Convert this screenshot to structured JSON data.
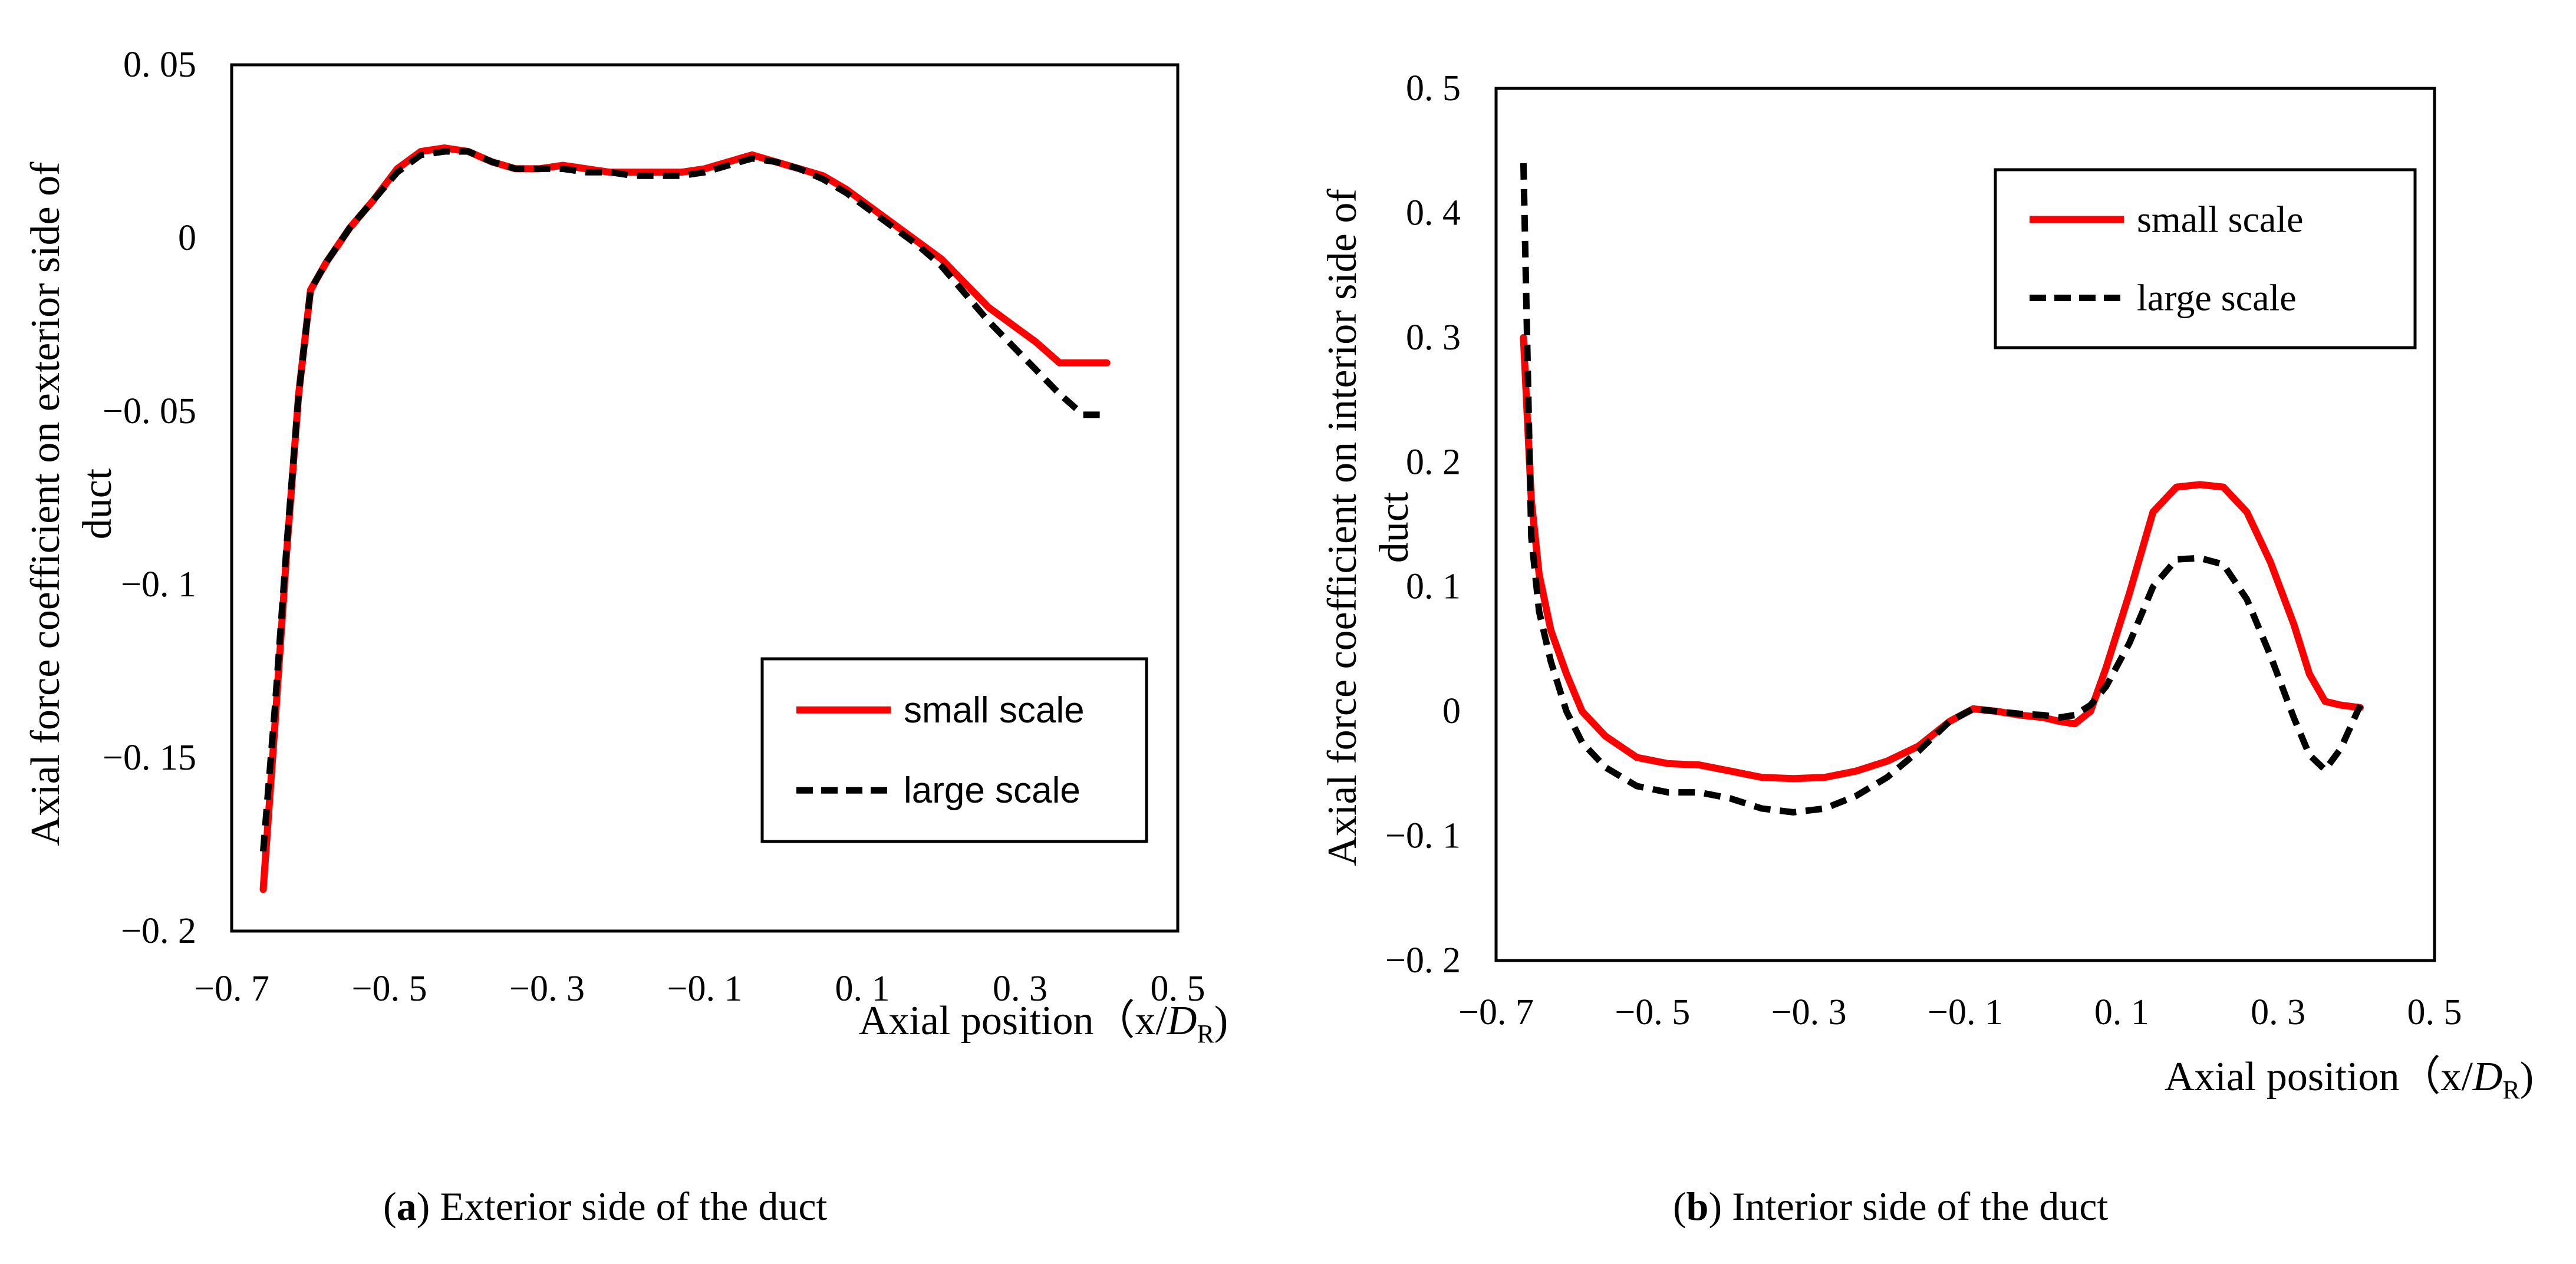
{
  "chart_data": [
    {
      "type": "line",
      "caption_letter": "a",
      "caption_text": "Exterior side of the duct",
      "xlabel": "Axial position（x/",
      "xlabel_var": "D",
      "xlabel_sub": "R",
      "xlabel_close": ")",
      "ylabel_line1": "Axial force coefficient on exterior side of",
      "ylabel_line2": "duct",
      "xlim": [
        -0.7,
        0.5
      ],
      "ylim": [
        -0.2,
        0.05
      ],
      "xticks": [
        -0.7,
        -0.5,
        -0.3,
        -0.1,
        0.1,
        0.3,
        0.5
      ],
      "yticks": [
        -0.2,
        -0.15,
        -0.1,
        -0.05,
        0,
        0.05
      ],
      "xtick_labels": [
        "−0. 7",
        "−0. 5",
        "−0. 3",
        "−0. 1",
        "0. 1",
        "0. 3",
        "0. 5"
      ],
      "ytick_labels": [
        "−0. 2",
        "−0. 15",
        "−0. 1",
        "−0. 05",
        "0",
        "0. 05"
      ],
      "legend_position": "lower-right",
      "series": [
        {
          "name": "small scale",
          "color": "#ff0000",
          "style": "solid",
          "x": [
            -0.66,
            -0.645,
            -0.63,
            -0.615,
            -0.6,
            -0.58,
            -0.55,
            -0.52,
            -0.49,
            -0.46,
            -0.43,
            -0.4,
            -0.37,
            -0.34,
            -0.31,
            -0.28,
            -0.25,
            -0.22,
            -0.19,
            -0.16,
            -0.13,
            -0.1,
            -0.07,
            -0.04,
            -0.01,
            0.02,
            0.05,
            0.08,
            0.11,
            0.14,
            0.17,
            0.2,
            0.23,
            0.26,
            0.29,
            0.32,
            0.35,
            0.38,
            0.41
          ],
          "y": [
            -0.188,
            -0.14,
            -0.09,
            -0.045,
            -0.015,
            -0.007,
            0.003,
            0.011,
            0.02,
            0.025,
            0.026,
            0.025,
            0.022,
            0.02,
            0.02,
            0.021,
            0.02,
            0.019,
            0.019,
            0.019,
            0.019,
            0.02,
            0.022,
            0.024,
            0.022,
            0.02,
            0.018,
            0.014,
            0.009,
            0.004,
            -0.001,
            -0.006,
            -0.013,
            -0.02,
            -0.025,
            -0.03,
            -0.036,
            -0.036,
            -0.036
          ]
        },
        {
          "name": "large scale",
          "color": "#000000",
          "style": "dashed",
          "x": [
            -0.66,
            -0.645,
            -0.63,
            -0.615,
            -0.6,
            -0.58,
            -0.55,
            -0.52,
            -0.49,
            -0.46,
            -0.43,
            -0.4,
            -0.37,
            -0.34,
            -0.31,
            -0.28,
            -0.25,
            -0.22,
            -0.19,
            -0.16,
            -0.13,
            -0.1,
            -0.07,
            -0.04,
            -0.01,
            0.02,
            0.05,
            0.08,
            0.11,
            0.14,
            0.17,
            0.2,
            0.23,
            0.26,
            0.29,
            0.32,
            0.35,
            0.38,
            0.41
          ],
          "y": [
            -0.177,
            -0.135,
            -0.088,
            -0.045,
            -0.015,
            -0.007,
            0.003,
            0.011,
            0.019,
            0.024,
            0.025,
            0.025,
            0.022,
            0.02,
            0.02,
            0.02,
            0.019,
            0.019,
            0.018,
            0.018,
            0.018,
            0.019,
            0.021,
            0.023,
            0.022,
            0.02,
            0.017,
            0.013,
            0.008,
            0.003,
            -0.002,
            -0.008,
            -0.016,
            -0.024,
            -0.031,
            -0.038,
            -0.045,
            -0.051,
            -0.051
          ]
        }
      ]
    },
    {
      "type": "line",
      "caption_letter": "b",
      "caption_text": "Interior side of the duct",
      "xlabel": "Axial position（x/",
      "xlabel_var": "D",
      "xlabel_sub": "R",
      "xlabel_close": ")",
      "ylabel_line1": "Axial force coefficient on interior side of",
      "ylabel_line2": "duct",
      "xlim": [
        -0.7,
        0.5
      ],
      "ylim": [
        -0.2,
        0.5
      ],
      "xticks": [
        -0.7,
        -0.5,
        -0.3,
        -0.1,
        0.1,
        0.3,
        0.5
      ],
      "yticks": [
        -0.2,
        -0.1,
        0,
        0.1,
        0.2,
        0.3,
        0.4,
        0.5
      ],
      "xtick_labels": [
        "−0. 7",
        "−0. 5",
        "−0. 3",
        "−0. 1",
        "0. 1",
        "0. 3",
        "0. 5"
      ],
      "ytick_labels": [
        "−0. 2",
        "−0. 1",
        "0",
        "0. 1",
        "0. 2",
        "0. 3",
        "0. 4",
        "0. 5"
      ],
      "legend_position": "top-right",
      "series": [
        {
          "name": "small scale",
          "color": "#ff0000",
          "style": "solid",
          "x": [
            -0.665,
            -0.655,
            -0.645,
            -0.63,
            -0.61,
            -0.59,
            -0.56,
            -0.52,
            -0.48,
            -0.44,
            -0.4,
            -0.36,
            -0.32,
            -0.28,
            -0.24,
            -0.2,
            -0.16,
            -0.12,
            -0.09,
            -0.06,
            -0.03,
            0.0,
            0.02,
            0.04,
            0.06,
            0.08,
            0.11,
            0.14,
            0.17,
            0.2,
            0.23,
            0.26,
            0.29,
            0.32,
            0.34,
            0.36,
            0.38,
            0.405
          ],
          "y": [
            0.3,
            0.17,
            0.11,
            0.065,
            0.03,
            0.0,
            -0.02,
            -0.037,
            -0.042,
            -0.043,
            -0.048,
            -0.053,
            -0.054,
            -0.053,
            -0.048,
            -0.04,
            -0.028,
            -0.008,
            0.002,
            0.0,
            -0.003,
            -0.005,
            -0.008,
            -0.01,
            0.0,
            0.035,
            0.095,
            0.16,
            0.18,
            0.182,
            0.18,
            0.16,
            0.12,
            0.07,
            0.03,
            0.008,
            0.005,
            0.003
          ]
        },
        {
          "name": "large scale",
          "color": "#000000",
          "style": "dashed",
          "x": [
            -0.665,
            -0.655,
            -0.645,
            -0.63,
            -0.61,
            -0.59,
            -0.56,
            -0.52,
            -0.48,
            -0.44,
            -0.4,
            -0.36,
            -0.32,
            -0.28,
            -0.24,
            -0.2,
            -0.16,
            -0.12,
            -0.09,
            -0.06,
            -0.03,
            0.0,
            0.02,
            0.04,
            0.06,
            0.08,
            0.11,
            0.14,
            0.17,
            0.2,
            0.23,
            0.26,
            0.29,
            0.32,
            0.34,
            0.36,
            0.38,
            0.405
          ],
          "y": [
            0.44,
            0.14,
            0.08,
            0.04,
            0.0,
            -0.025,
            -0.045,
            -0.06,
            -0.065,
            -0.065,
            -0.07,
            -0.078,
            -0.081,
            -0.078,
            -0.068,
            -0.053,
            -0.032,
            -0.008,
            0.002,
            0.0,
            -0.002,
            -0.003,
            -0.005,
            -0.003,
            0.005,
            0.02,
            0.055,
            0.1,
            0.122,
            0.123,
            0.118,
            0.09,
            0.045,
            -0.005,
            -0.035,
            -0.047,
            -0.03,
            0.005
          ]
        }
      ]
    }
  ]
}
